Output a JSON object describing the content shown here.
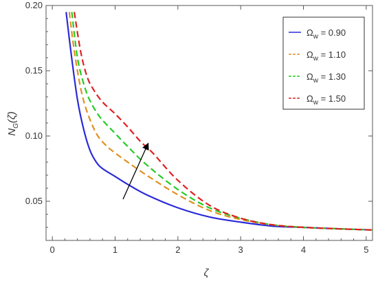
{
  "chart_data": {
    "type": "line",
    "title": "",
    "xlabel": "ζ",
    "ylabel": "N_G(ζ)",
    "xlim": [
      -0.1,
      5.1
    ],
    "ylim": [
      0.02,
      0.2
    ],
    "xticks": [
      "0",
      "1",
      "2",
      "3",
      "4",
      "5"
    ],
    "yticks": [
      "0.05",
      "0.10",
      "0.15",
      "0.20"
    ],
    "legend_position": "top-right",
    "series": [
      {
        "name": "Ω_w = 0.90",
        "label": {
          "main": "Ω",
          "sub": "w",
          "value": " = 0.90"
        },
        "color": "#2a2ad8",
        "style": "solid",
        "x": [
          0.22,
          0.3,
          0.4,
          0.5,
          0.6,
          0.7,
          0.8,
          1.0,
          1.2,
          1.5,
          2.0,
          2.5,
          3.0,
          3.5,
          4.0,
          4.5,
          5.1
        ],
        "y": [
          0.195,
          0.163,
          0.128,
          0.105,
          0.089,
          0.08,
          0.075,
          0.069,
          0.063,
          0.055,
          0.045,
          0.038,
          0.034,
          0.031,
          0.03,
          0.029,
          0.028
        ]
      },
      {
        "name": "Ω_w = 1.10",
        "label": {
          "main": "Ω",
          "sub": "w",
          "value": " = 1.10"
        },
        "color": "#e09020",
        "style": "dashed",
        "x": [
          0.27,
          0.35,
          0.45,
          0.55,
          0.7,
          0.85,
          1.0,
          1.2,
          1.5,
          2.0,
          2.5,
          3.0,
          3.5,
          4.0,
          4.5,
          5.1
        ],
        "y": [
          0.195,
          0.165,
          0.137,
          0.119,
          0.102,
          0.093,
          0.087,
          0.08,
          0.07,
          0.055,
          0.043,
          0.036,
          0.032,
          0.03,
          0.029,
          0.028
        ]
      },
      {
        "name": "Ω_w = 1.30",
        "label": {
          "main": "Ω",
          "sub": "w",
          "value": " = 1.30"
        },
        "color": "#22cc22",
        "style": "dashed",
        "x": [
          0.31,
          0.4,
          0.5,
          0.6,
          0.75,
          0.9,
          1.0,
          1.2,
          1.5,
          2.0,
          2.5,
          3.0,
          3.5,
          4.0,
          4.5,
          5.1
        ],
        "y": [
          0.195,
          0.16,
          0.14,
          0.127,
          0.115,
          0.107,
          0.102,
          0.092,
          0.078,
          0.059,
          0.045,
          0.037,
          0.032,
          0.03,
          0.029,
          0.028
        ]
      },
      {
        "name": "Ω_w = 1.50",
        "label": {
          "main": "Ω",
          "sub": "w",
          "value": " = 1.50"
        },
        "color": "#e02020",
        "style": "dashed",
        "x": [
          0.35,
          0.45,
          0.55,
          0.65,
          0.8,
          1.0,
          1.2,
          1.4,
          1.6,
          2.0,
          2.5,
          3.0,
          3.5,
          4.0,
          4.5,
          5.1
        ],
        "y": [
          0.195,
          0.165,
          0.146,
          0.136,
          0.126,
          0.117,
          0.107,
          0.096,
          0.087,
          0.066,
          0.047,
          0.037,
          0.032,
          0.03,
          0.029,
          0.028
        ]
      }
    ]
  }
}
